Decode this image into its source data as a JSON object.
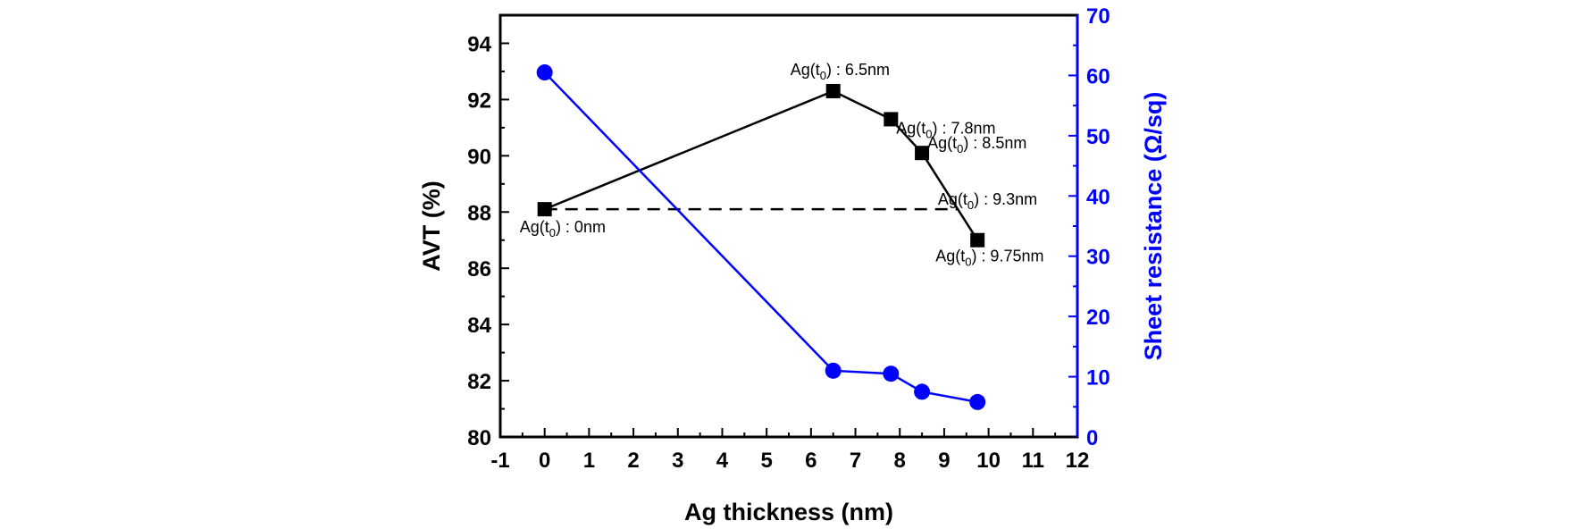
{
  "chart_data": {
    "type": "line",
    "xlabel": "Ag thickness (nm)",
    "ylabel": "AVT (%)",
    "y2label": "Sheet resistance (Ω/sq)",
    "xlim": [
      -1,
      12
    ],
    "ylim": [
      80,
      95
    ],
    "y2lim": [
      0,
      70
    ],
    "xticks": [
      "-1",
      "0",
      "1",
      "2",
      "3",
      "4",
      "5",
      "6",
      "7",
      "8",
      "9",
      "10",
      "11",
      "12"
    ],
    "yticks": [
      "80",
      "82",
      "84",
      "86",
      "88",
      "90",
      "92",
      "94"
    ],
    "y2ticks": [
      "0",
      "10",
      "20",
      "30",
      "40",
      "50",
      "60",
      "70"
    ],
    "colors": {
      "avt": "#000000",
      "sheet": "#0000ff"
    },
    "series": [
      {
        "name": "AVT",
        "axis": "left",
        "marker": "square",
        "x": [
          0,
          6.5,
          7.8,
          8.5,
          9.75
        ],
        "y": [
          88.1,
          92.3,
          91.3,
          90.1,
          87.0
        ]
      },
      {
        "name": "Sheet resistance",
        "axis": "right",
        "marker": "circle",
        "x": [
          0,
          6.5,
          7.8,
          8.5,
          9.75
        ],
        "y": [
          60.5,
          11.0,
          10.5,
          7.5,
          5.8
        ]
      }
    ],
    "reference_line": {
      "y": 88.1,
      "x_start": 0,
      "x_end": 9.3,
      "style": "dashed"
    },
    "annotations": [
      {
        "pre": "Ag(t",
        "sub": "0",
        "post": ") : 0nm",
        "x": 0,
        "y": 88.1
      },
      {
        "pre": "Ag(t",
        "sub": "0",
        "post": ") : 6.5nm",
        "x": 6.5,
        "y": 92.3
      },
      {
        "pre": "Ag(t",
        "sub": "0",
        "post": ") : 7.8nm",
        "x": 7.8,
        "y": 91.3
      },
      {
        "pre": "Ag(t",
        "sub": "0",
        "post": ") : 8.5nm",
        "x": 8.5,
        "y": 90.1
      },
      {
        "pre": "Ag(t",
        "sub": "0",
        "post": ") : 9.3nm",
        "x": 9.3,
        "y": 88.1
      },
      {
        "pre": "Ag(t",
        "sub": "0",
        "post": ") : 9.75nm",
        "x": 9.75,
        "y": 87.0
      }
    ]
  }
}
